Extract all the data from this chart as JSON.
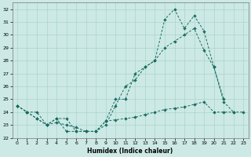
{
  "xlabel": "Humidex (Indice chaleur)",
  "xlim": [
    -0.5,
    23.5
  ],
  "ylim": [
    22,
    32.5
  ],
  "xticks": [
    0,
    1,
    2,
    3,
    4,
    5,
    6,
    7,
    8,
    9,
    10,
    11,
    12,
    13,
    14,
    15,
    16,
    17,
    18,
    19,
    20,
    21,
    22,
    23
  ],
  "yticks": [
    22,
    23,
    24,
    25,
    26,
    27,
    28,
    29,
    30,
    31,
    32
  ],
  "bg_color": "#cce9e5",
  "grid_color": "#aad4ce",
  "line_color": "#1a6b60",
  "line1_x": [
    0,
    1,
    2,
    3,
    4,
    5,
    6,
    7,
    8,
    9,
    10,
    11,
    12,
    13,
    14,
    15,
    16,
    17,
    18,
    19,
    20,
    21,
    22
  ],
  "line1_y": [
    24.5,
    24.0,
    23.5,
    23.0,
    23.5,
    23.5,
    22.5,
    22.5,
    22.5,
    23.3,
    25.0,
    25.0,
    27.0,
    27.5,
    28.0,
    31.2,
    32.0,
    30.5,
    31.5,
    30.3,
    27.5,
    24.8,
    24.0
  ],
  "line2_x": [
    0,
    1,
    2,
    3,
    4,
    5,
    6,
    7,
    8,
    9,
    10,
    11,
    12,
    13,
    14,
    15,
    16,
    17,
    18,
    19,
    20,
    21
  ],
  "line2_y": [
    24.5,
    24.0,
    24.0,
    23.0,
    23.2,
    23.0,
    22.8,
    22.5,
    22.5,
    23.0,
    24.5,
    26.0,
    26.5,
    27.5,
    28.0,
    29.0,
    29.5,
    30.0,
    30.5,
    28.8,
    27.5,
    25.0
  ],
  "line3_x": [
    0,
    1,
    2,
    3,
    4,
    5,
    6,
    7,
    8,
    9,
    10,
    11,
    12,
    13,
    14,
    15,
    16,
    17,
    18,
    19,
    20,
    21,
    22,
    23
  ],
  "line3_y": [
    24.5,
    24.0,
    23.5,
    23.0,
    23.5,
    22.5,
    22.5,
    22.5,
    22.5,
    23.3,
    23.4,
    23.5,
    23.6,
    23.8,
    24.0,
    24.2,
    24.3,
    24.4,
    24.6,
    24.8,
    24.0,
    24.0,
    24.0,
    24.0
  ]
}
